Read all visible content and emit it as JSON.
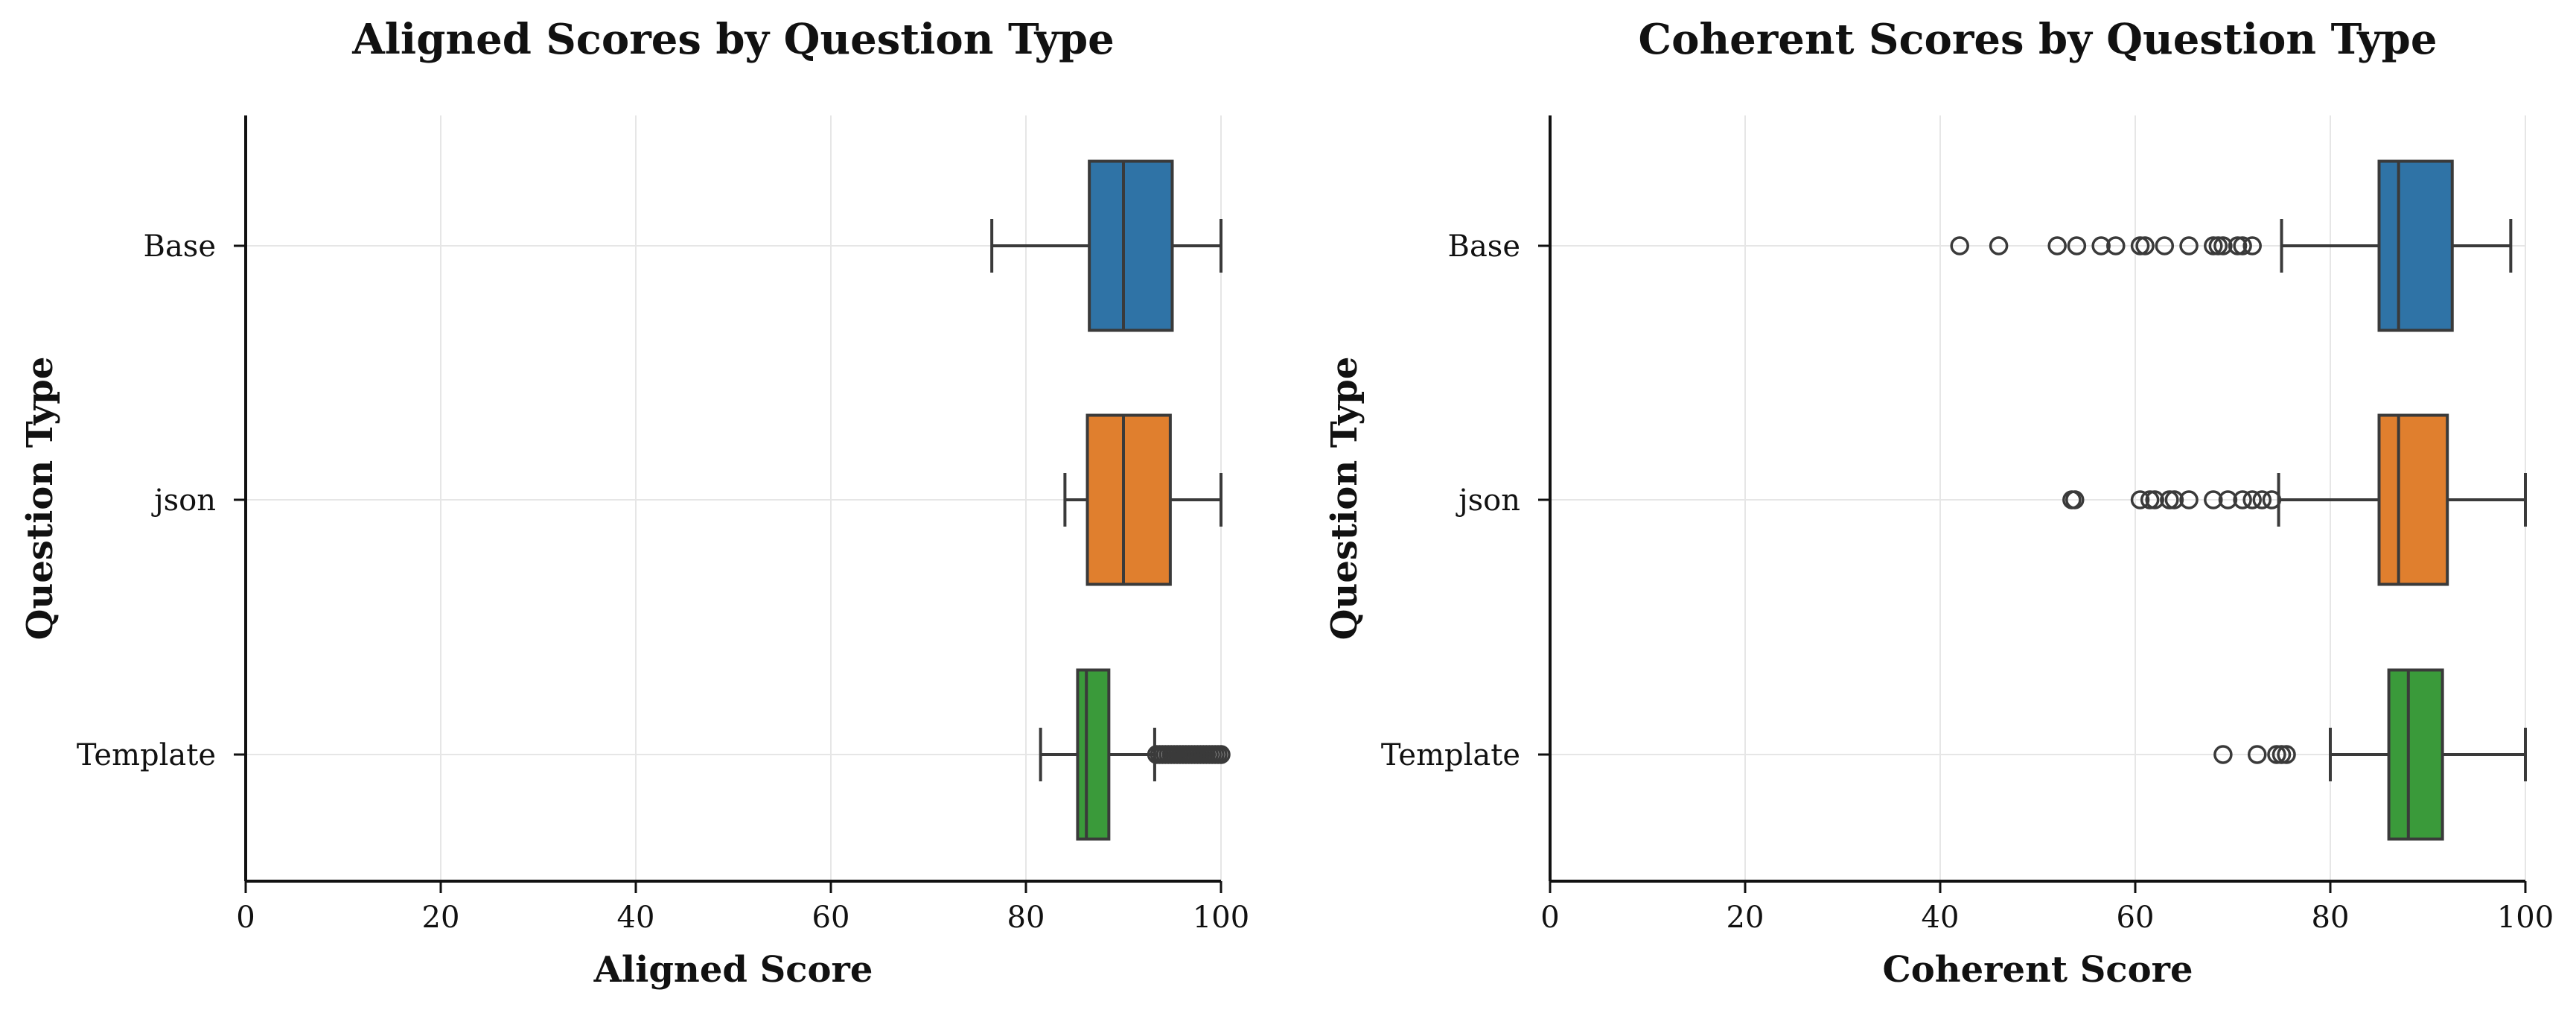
{
  "chart_data": [
    {
      "type": "box",
      "orientation": "horizontal",
      "title": "Aligned Scores by Question Type",
      "xlabel": "Aligned Score",
      "ylabel": "Question Type",
      "xlim": [
        0,
        100
      ],
      "xticks": [
        0,
        20,
        40,
        60,
        80,
        100
      ],
      "grid": true,
      "categories": [
        "Base",
        "json",
        "Template"
      ],
      "colors": [
        "#2f73a6",
        "#e07f2e",
        "#3a9a3a"
      ],
      "boxes": [
        {
          "category": "Base",
          "whisker_low": 76.5,
          "q1": 86.5,
          "median": 90.0,
          "q3": 95.0,
          "whisker_high": 100.0,
          "outliers": []
        },
        {
          "category": "json",
          "whisker_low": 84.0,
          "q1": 86.3,
          "median": 90.0,
          "q3": 94.8,
          "whisker_high": 100.0,
          "outliers": []
        },
        {
          "category": "Template",
          "whisker_low": 81.5,
          "q1": 85.3,
          "median": 86.2,
          "q3": 88.5,
          "whisker_high": 93.2,
          "outliers": [
            93.4,
            93.7,
            94.0,
            94.3,
            94.6,
            94.9,
            95.2,
            95.5,
            95.8,
            96.1,
            96.4,
            96.7,
            97.0,
            97.3,
            97.6,
            97.9,
            98.2,
            98.5,
            98.8,
            99.1,
            99.4,
            99.7,
            100.0
          ]
        }
      ]
    },
    {
      "type": "box",
      "orientation": "horizontal",
      "title": "Coherent Scores by Question Type",
      "xlabel": "Coherent Score",
      "ylabel": "Question Type",
      "xlim": [
        0,
        100
      ],
      "xticks": [
        0,
        20,
        40,
        60,
        80,
        100
      ],
      "grid": true,
      "categories": [
        "Base",
        "json",
        "Template"
      ],
      "colors": [
        "#2f73a6",
        "#e07f2e",
        "#3a9a3a"
      ],
      "boxes": [
        {
          "category": "Base",
          "whisker_low": 75.0,
          "q1": 85.0,
          "median": 87.0,
          "q3": 92.5,
          "whisker_high": 98.5,
          "outliers": [
            42.0,
            46.0,
            52.0,
            54.0,
            56.5,
            58.0,
            60.5,
            61.0,
            63.0,
            65.5,
            68.0,
            68.5,
            69.0,
            70.5,
            71.0,
            72.0
          ]
        },
        {
          "category": "json",
          "whisker_low": 74.7,
          "q1": 85.0,
          "median": 87.0,
          "q3": 92.0,
          "whisker_high": 100.0,
          "outliers": [
            53.5,
            53.8,
            60.5,
            61.5,
            62.0,
            63.5,
            64.0,
            65.5,
            68.0,
            69.5,
            71.0,
            72.0,
            73.0,
            74.0
          ]
        },
        {
          "category": "Template",
          "whisker_low": 80.0,
          "q1": 86.0,
          "median": 88.0,
          "q3": 91.5,
          "whisker_high": 100.0,
          "outliers": [
            69.0,
            72.5,
            74.5,
            75.0,
            75.5
          ]
        }
      ]
    }
  ]
}
